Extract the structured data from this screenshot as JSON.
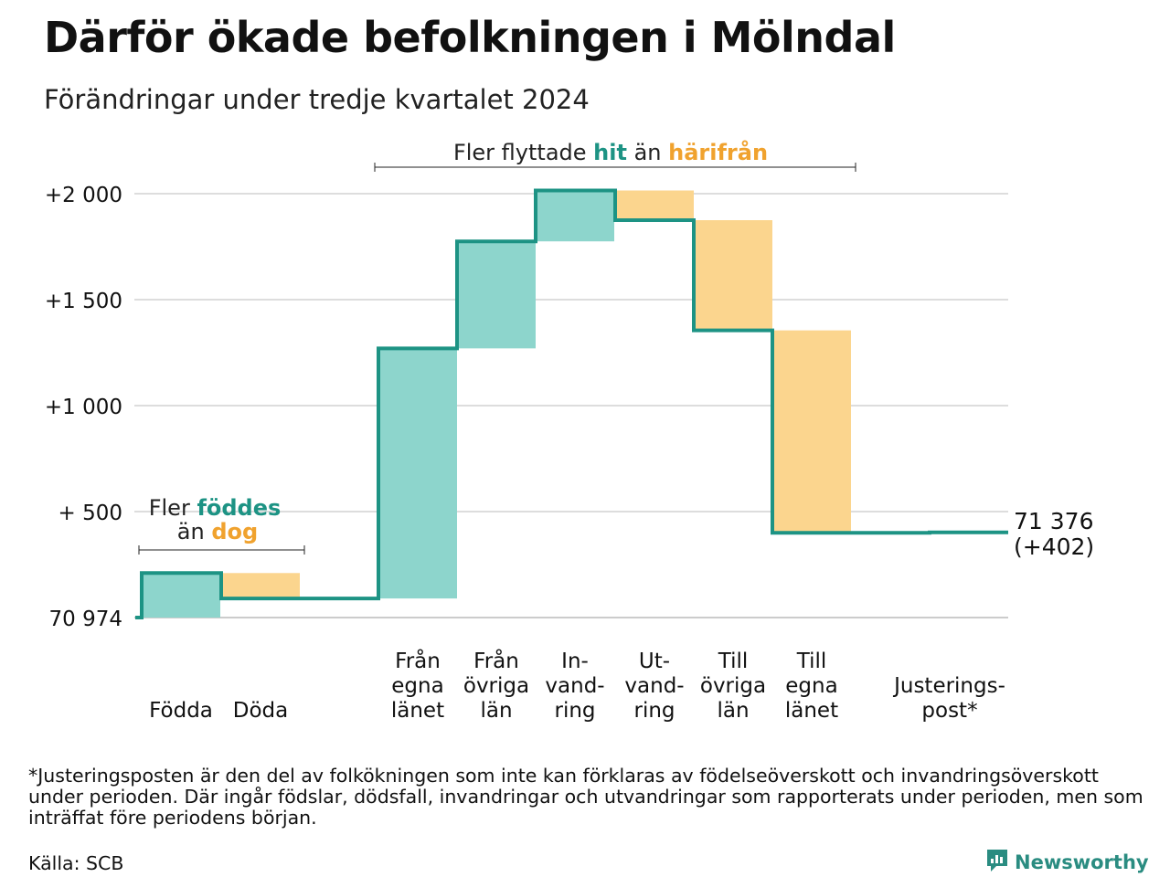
{
  "title": "Därför ökade befolkningen i Mölndal",
  "subtitle": "Förändringar under tredje kvartalet 2024",
  "colors": {
    "inflow": "#8dd5cc",
    "outflow": "#fbd58e",
    "line": "#1d9384",
    "accent_teal": "#1d9384",
    "accent_orange": "#f0a22e",
    "grid": "#dddddd"
  },
  "annotations": {
    "births": {
      "line1_prefix": "Fler ",
      "line1_highlight": "föddes",
      "line2_prefix": "än ",
      "line2_highlight": "dog"
    },
    "migration": {
      "prefix": "Fler flyttade ",
      "highlight1": "hit",
      "middle": " än ",
      "highlight2": "härifrån"
    }
  },
  "end_label": {
    "value": "71 376",
    "change": "(+402)"
  },
  "chart_data": {
    "type": "waterfall",
    "baseline": 70974,
    "y_ticks": [
      {
        "value": 0,
        "label": "70 974"
      },
      {
        "value": 500,
        "label": "+  500"
      },
      {
        "value": 1000,
        "label": "+1 000"
      },
      {
        "value": 1500,
        "label": "+1 500"
      },
      {
        "value": 2000,
        "label": "+2 000"
      }
    ],
    "ylim": [
      0,
      2000
    ],
    "grid": true,
    "steps": [
      {
        "label": [
          "Födda"
        ],
        "delta": 210,
        "kind": "inflow"
      },
      {
        "label": [
          "Döda"
        ],
        "delta": -120,
        "kind": "outflow"
      },
      {
        "label": [],
        "delta": 0,
        "kind": "spacer"
      },
      {
        "label": [
          "Från",
          "egna",
          "länet"
        ],
        "delta": 1180,
        "kind": "inflow"
      },
      {
        "label": [
          "Från",
          "övriga",
          "län"
        ],
        "delta": 505,
        "kind": "inflow"
      },
      {
        "label": [
          "In-",
          "vand-",
          "ring"
        ],
        "delta": 240,
        "kind": "inflow"
      },
      {
        "label": [
          "Ut-",
          "vand-",
          "ring"
        ],
        "delta": -140,
        "kind": "outflow"
      },
      {
        "label": [
          "Till",
          "övriga",
          "län"
        ],
        "delta": -520,
        "kind": "outflow"
      },
      {
        "label": [
          "Till",
          "egna",
          "länet"
        ],
        "delta": -955,
        "kind": "outflow"
      },
      {
        "label": [
          "Justerings-",
          "post*"
        ],
        "delta": 2,
        "kind": "adjustment"
      }
    ],
    "total_change": 402,
    "end_value": 71376
  },
  "footnote": "*Justeringsposten är den del av folkökningen som inte kan förklaras av födelseöverskott och invandringsöverskott under perioden. Där ingår födslar, dödsfall, invandringar och utvandringar som rapporterats under perioden, men som inträffat före periodens början.",
  "source": "Källa: SCB",
  "brand": {
    "name": "Newsworthy",
    "icon": "newsworthy-logo-icon"
  }
}
